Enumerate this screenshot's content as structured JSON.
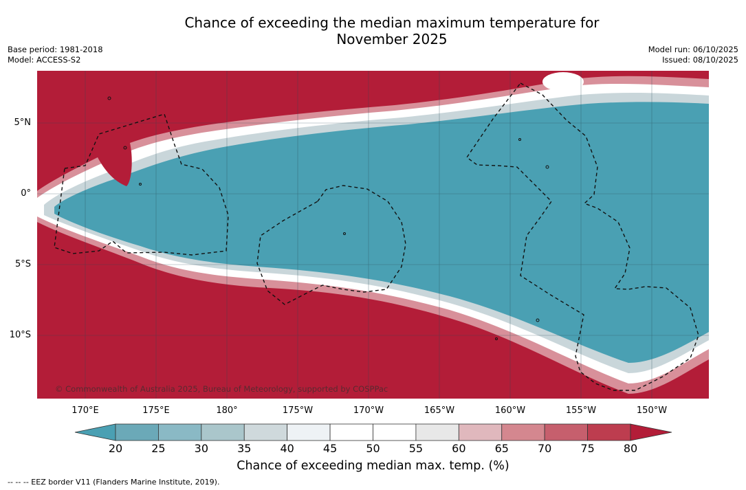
{
  "title_line1": "Chance of exceeding the median maximum temperature for",
  "title_line2": "November 2025",
  "meta_left": {
    "base_period": "Base period: 1981-2018",
    "model": "Model: ACCESS-S2"
  },
  "meta_right": {
    "model_run": "Model run: 06/10/2025",
    "issued": "Issued: 08/10/2025"
  },
  "map": {
    "lat_labels": [
      "5°N",
      "0°",
      "5°S",
      "10°S"
    ],
    "lon_labels": [
      "170°E",
      "175°E",
      "180°",
      "175°W",
      "170°W",
      "165°W",
      "160°W",
      "155°W",
      "150°W"
    ],
    "copyright": "© Commonwealth of Australia 2025, Bureau of Meteorology, supported by COSPPac",
    "colors": {
      "below": "#4aa0b3",
      "above": "#b31d38"
    }
  },
  "colorbar": {
    "ticks": [
      "20",
      "25",
      "30",
      "35",
      "40",
      "45",
      "50",
      "55",
      "60",
      "65",
      "70",
      "75",
      "80"
    ],
    "colors": [
      "#6ba9b8",
      "#8ab9c5",
      "#aac6cb",
      "#cfd9dc",
      "#eef2f5",
      "#ffffff",
      "#ffffff",
      "#e8e8e8",
      "#e0b8bd",
      "#d4878f",
      "#c65f6d",
      "#bd3d4f"
    ],
    "extend_low": "#4aa0b3",
    "extend_high": "#b31d38",
    "label": "Chance of exceeding median max. temp. (%)"
  },
  "legend": "--  --  -- EEZ border V11 (Flanders Marine Institute, 2019)."
}
